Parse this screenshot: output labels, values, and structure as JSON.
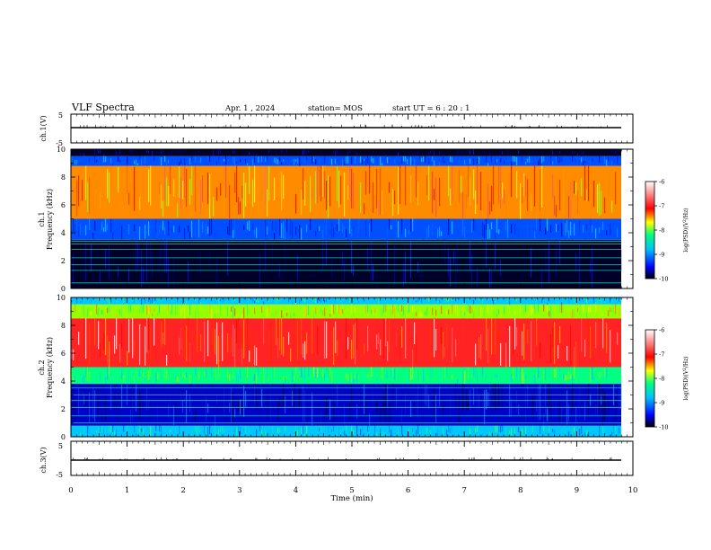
{
  "header": {
    "title": "VLF Spectra",
    "date": "Apr. 1 , 2024",
    "station": "station= MOS",
    "start": "start UT =  6 : 20 : 1"
  },
  "colors": {
    "scale": [
      "#000080",
      "#0000ff",
      "#00c0ff",
      "#00ff80",
      "#80ff00",
      "#ffff00",
      "#ff8000",
      "#ff0000",
      "#ffffff"
    ]
  },
  "chart_data": [
    {
      "type": "line",
      "panel": "ch1-waveform",
      "ylabel": "ch.1(V)",
      "ylim": [
        -5,
        5
      ],
      "yticks": [
        "5",
        "-5"
      ],
      "x": [
        0,
        10
      ],
      "values": [
        -0.5,
        -0.5
      ]
    },
    {
      "type": "heatmap",
      "panel": "ch1-spectrogram",
      "ylabel": "ch.1\nFrequency (kHz)",
      "ylim": [
        0,
        10
      ],
      "yticks": [
        "0",
        "2",
        "4",
        "6",
        "8",
        "10"
      ],
      "colorbar": {
        "label": "log(PSD)(V²/Hz)",
        "ticks": [
          "-6",
          "-7",
          "-8",
          "-9",
          "-10"
        ],
        "range": [
          -10,
          -6
        ]
      },
      "bands_khz": [
        {
          "from": 0,
          "to": 3.5,
          "log_psd": -10
        },
        {
          "from": 3.5,
          "to": 5,
          "log_psd": -9
        },
        {
          "from": 5,
          "to": 8.8,
          "log_psd": -7
        },
        {
          "from": 8.8,
          "to": 9.5,
          "log_psd": -9
        },
        {
          "from": 9.5,
          "to": 10,
          "log_psd": -10
        }
      ],
      "lines_khz": [
        0.4,
        1.3,
        1.7,
        2.2,
        2.8,
        3.2,
        3.4
      ]
    },
    {
      "type": "heatmap",
      "panel": "ch2-spectrogram",
      "ylabel": "ch.2\nFrequency (kHz)",
      "ylim": [
        0,
        10
      ],
      "yticks": [
        "0",
        "2",
        "4",
        "6",
        "8",
        "10"
      ],
      "colorbar": {
        "label": "log(PSD)(V²/Hz)",
        "ticks": [
          "-6",
          "-7",
          "-8",
          "-9",
          "-10"
        ],
        "range": [
          -10,
          -6
        ]
      },
      "bands_khz": [
        {
          "from": 0,
          "to": 0.8,
          "log_psd": -8.5
        },
        {
          "from": 0.8,
          "to": 3.8,
          "log_psd": -9.5
        },
        {
          "from": 3.8,
          "to": 5,
          "log_psd": -8
        },
        {
          "from": 5,
          "to": 8.5,
          "log_psd": -6.5
        },
        {
          "from": 8.5,
          "to": 9.5,
          "log_psd": -7.5
        },
        {
          "from": 9.5,
          "to": 10,
          "log_psd": -8.5
        }
      ],
      "lines_khz": [
        1.0,
        1.5,
        2.1,
        2.6,
        3.0,
        3.5
      ]
    },
    {
      "type": "line",
      "panel": "ch3-waveform",
      "ylabel": "ch.3(V)",
      "ylim": [
        -5,
        5
      ],
      "yticks": [
        "5",
        "-5"
      ],
      "x": [
        0,
        10
      ],
      "values": [
        -0.5,
        -0.5
      ]
    }
  ],
  "xaxis": {
    "label": "Time  (min)",
    "ticks": [
      "0",
      "1",
      "2",
      "3",
      "4",
      "5",
      "6",
      "7",
      "8",
      "9",
      "10"
    ],
    "range": [
      0,
      10
    ]
  }
}
